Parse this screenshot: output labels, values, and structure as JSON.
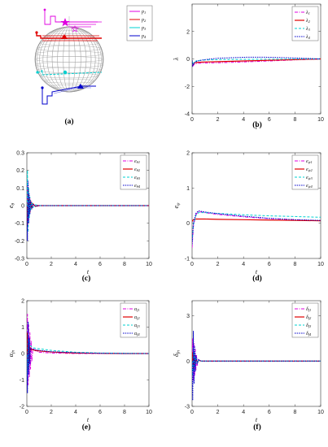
{
  "captions": [
    "(a)",
    "(b)",
    "(c)",
    "(d)",
    "(e)",
    "(f)"
  ],
  "colors": {
    "magenta": "#e000e0",
    "red": "#e00000",
    "cyan": "#00d0d0",
    "blue": "#0000cc"
  },
  "panel_a_legend": [
    "p1",
    "p2",
    "p3",
    "p4"
  ],
  "chart_data": [
    {
      "id": "b",
      "type": "line",
      "xlabel": "t",
      "ylabel": "λ",
      "xlim": [
        0,
        10
      ],
      "ylim": [
        -4,
        4
      ],
      "xticks": [
        0,
        2,
        4,
        6,
        8,
        10
      ],
      "yticks": [
        -4,
        -2,
        0,
        2
      ],
      "legend": [
        "λ1",
        "λ2",
        "λ3",
        "λ4"
      ],
      "series": [
        {
          "name": "λ1",
          "x": [
            0,
            0.05,
            0.15,
            0.4,
            1,
            2,
            4,
            6,
            8,
            10
          ],
          "y": [
            -0.1,
            -0.55,
            -0.4,
            -0.32,
            -0.3,
            -0.28,
            -0.22,
            -0.15,
            -0.07,
            0
          ]
        },
        {
          "name": "λ2",
          "x": [
            0,
            0.05,
            0.15,
            0.4,
            1,
            2,
            4,
            6,
            8,
            10
          ],
          "y": [
            -0.1,
            -0.45,
            -0.3,
            -0.25,
            -0.22,
            -0.2,
            -0.15,
            -0.1,
            -0.05,
            0
          ]
        },
        {
          "name": "λ3",
          "x": [
            0,
            0.05,
            0.15,
            0.4,
            1,
            2,
            4,
            6,
            8,
            10
          ],
          "y": [
            -0.1,
            -0.4,
            -0.22,
            -0.12,
            -0.08,
            -0.05,
            -0.03,
            -0.02,
            -0.01,
            0
          ]
        },
        {
          "name": "λ4",
          "x": [
            0,
            0.05,
            0.15,
            0.4,
            1,
            2,
            4,
            5,
            6,
            8,
            10
          ],
          "y": [
            -0.1,
            -0.5,
            -0.3,
            -0.15,
            -0.05,
            0.05,
            0.12,
            0.13,
            0.12,
            0.07,
            0
          ]
        }
      ]
    },
    {
      "id": "c",
      "type": "line",
      "xlabel": "t",
      "ylabel": "eθ",
      "xlim": [
        0,
        10
      ],
      "ylim": [
        -0.3,
        0.3
      ],
      "xticks": [
        0,
        2,
        4,
        6,
        8,
        10
      ],
      "yticks": [
        -0.3,
        -0.2,
        -0.1,
        0,
        0.1,
        0.2,
        0.3
      ],
      "legend": [
        "eθ1",
        "eθ2",
        "eθ3",
        "eθ4"
      ],
      "series": [
        {
          "name": "eθ1",
          "x": [
            0,
            0.05,
            0.1,
            0.15,
            0.2,
            0.25,
            0.3,
            0.4,
            0.5,
            0.7,
            1,
            10
          ],
          "y": [
            0,
            0.15,
            -0.1,
            0.08,
            -0.06,
            0.04,
            -0.03,
            0.02,
            -0.01,
            0.005,
            0,
            0
          ]
        },
        {
          "name": "eθ2",
          "x": [
            0,
            0.05,
            0.1,
            0.15,
            0.2,
            0.25,
            0.3,
            0.4,
            0.5,
            0.7,
            1,
            10
          ],
          "y": [
            0,
            -0.12,
            0.1,
            -0.07,
            0.05,
            -0.04,
            0.03,
            -0.015,
            0.01,
            -0.004,
            0,
            0
          ]
        },
        {
          "name": "eθ3",
          "x": [
            0,
            0.05,
            0.1,
            0.15,
            0.2,
            0.25,
            0.3,
            0.4,
            0.5,
            0.7,
            1,
            10
          ],
          "y": [
            0,
            0.2,
            -0.15,
            0.1,
            -0.07,
            0.05,
            -0.03,
            0.02,
            -0.01,
            0.005,
            0,
            0
          ]
        },
        {
          "name": "eθ4",
          "x": [
            0,
            0.05,
            0.1,
            0.15,
            0.2,
            0.25,
            0.3,
            0.4,
            0.5,
            0.7,
            1,
            10
          ],
          "y": [
            0,
            -0.2,
            0.14,
            -0.1,
            0.07,
            -0.05,
            0.03,
            -0.02,
            0.01,
            -0.005,
            0,
            0
          ]
        }
      ]
    },
    {
      "id": "d",
      "type": "line",
      "xlabel": "t",
      "ylabel": "eψ",
      "xlim": [
        0,
        10
      ],
      "ylim": [
        -1,
        2
      ],
      "xticks": [
        0,
        2,
        4,
        6,
        8,
        10
      ],
      "yticks": [
        -1,
        0,
        1,
        2
      ],
      "legend": [
        "eψ1",
        "eψ2",
        "eψ3",
        "eψ4"
      ],
      "series": [
        {
          "name": "eψ1",
          "x": [
            0,
            0.1,
            0.3,
            0.5,
            1,
            2,
            4,
            6,
            8,
            10
          ],
          "y": [
            -0.7,
            -0.1,
            0.25,
            0.33,
            0.3,
            0.25,
            0.18,
            0.13,
            0.1,
            0.07
          ]
        },
        {
          "name": "eψ2",
          "x": [
            0,
            0.1,
            0.3,
            0.5,
            1,
            2,
            4,
            6,
            8,
            10
          ],
          "y": [
            0.05,
            0.1,
            0.12,
            0.12,
            0.12,
            0.11,
            0.1,
            0.09,
            0.08,
            0.07
          ]
        },
        {
          "name": "eψ3",
          "x": [
            0,
            0.1,
            0.3,
            0.5,
            1,
            2,
            4,
            6,
            8,
            10
          ],
          "y": [
            -0.5,
            -0.05,
            0.22,
            0.3,
            0.3,
            0.28,
            0.24,
            0.21,
            0.19,
            0.17
          ]
        },
        {
          "name": "eψ4",
          "x": [
            0,
            0.1,
            0.3,
            0.5,
            1,
            2,
            4,
            6,
            8,
            10
          ],
          "y": [
            -0.6,
            0,
            0.28,
            0.35,
            0.32,
            0.27,
            0.2,
            0.14,
            0.1,
            0.08
          ]
        }
      ]
    },
    {
      "id": "e",
      "type": "line",
      "xlabel": "t",
      "ylabel": "αfn",
      "xlim": [
        0,
        10
      ],
      "ylim": [
        -2,
        2
      ],
      "xticks": [
        0,
        2,
        4,
        6,
        8,
        10
      ],
      "yticks": [
        -2,
        -1,
        0,
        1,
        2
      ],
      "legend": [
        "αf1",
        "αf2",
        "αf3",
        "αf4"
      ],
      "series": [
        {
          "name": "αf1",
          "x": [
            0,
            0.05,
            0.1,
            0.15,
            0.2,
            0.25,
            0.3,
            0.35,
            0.4,
            0.5,
            0.7,
            1,
            2,
            4,
            6,
            8,
            10
          ],
          "y": [
            0,
            1.5,
            -1.2,
            1.1,
            -0.9,
            0.8,
            -0.6,
            0.5,
            -0.3,
            0.2,
            0.1,
            0.05,
            0.02,
            0,
            0,
            0,
            0
          ]
        },
        {
          "name": "αf2",
          "x": [
            0,
            0.05,
            0.1,
            0.15,
            0.2,
            0.25,
            0.3,
            0.4,
            0.5,
            0.7,
            1,
            2,
            4,
            6,
            8,
            10
          ],
          "y": [
            0,
            0.8,
            -0.6,
            0.4,
            -0.3,
            0.25,
            0.15,
            0.15,
            0.14,
            0.12,
            0.1,
            0.06,
            0.02,
            0.01,
            0,
            0
          ]
        },
        {
          "name": "αf3",
          "x": [
            0,
            0.05,
            0.1,
            0.15,
            0.2,
            0.3,
            0.4,
            0.5,
            0.7,
            1,
            2,
            4,
            6,
            8,
            10
          ],
          "y": [
            0,
            -1,
            0.9,
            -0.6,
            0.5,
            0.3,
            0.25,
            0.22,
            0.2,
            0.18,
            0.12,
            0.05,
            0.02,
            0.01,
            0
          ]
        },
        {
          "name": "αf4",
          "x": [
            0,
            0.05,
            0.1,
            0.15,
            0.2,
            0.25,
            0.3,
            0.4,
            0.5,
            0.7,
            1,
            2,
            4,
            6,
            8,
            10
          ],
          "y": [
            0,
            -1.5,
            1.2,
            -0.8,
            0.6,
            -0.4,
            0.2,
            0.18,
            0.16,
            0.14,
            0.12,
            0.07,
            0.03,
            0.01,
            0,
            0
          ]
        }
      ]
    },
    {
      "id": "f",
      "type": "line",
      "xlabel": "t",
      "ylabel": "δfn",
      "xlim": [
        0,
        10
      ],
      "ylim": [
        -3,
        4
      ],
      "xticks": [
        0,
        2,
        4,
        6,
        8,
        10
      ],
      "yticks": [
        -3,
        0,
        3
      ],
      "legend": [
        "δf1",
        "δf2",
        "δf3",
        "δf4"
      ],
      "series": [
        {
          "name": "δf1",
          "x": [
            0,
            0.05,
            0.1,
            0.15,
            0.2,
            0.25,
            0.3,
            0.35,
            0.4,
            0.5,
            0.7,
            1,
            10
          ],
          "y": [
            0,
            1.5,
            -1.3,
            1.2,
            -1,
            0.8,
            -0.6,
            0.4,
            -0.3,
            0.1,
            0,
            0,
            0
          ]
        },
        {
          "name": "δf2",
          "x": [
            0,
            0.05,
            0.1,
            0.15,
            0.2,
            0.3,
            0.4,
            0.5,
            0.7,
            1,
            10
          ],
          "y": [
            0,
            0.6,
            -0.5,
            0.4,
            -0.3,
            0.2,
            -0.1,
            0.05,
            0,
            0,
            0
          ]
        },
        {
          "name": "δf3",
          "x": [
            0,
            0.05,
            0.1,
            0.15,
            0.2,
            0.25,
            0.3,
            0.4,
            0.5,
            0.7,
            1,
            10
          ],
          "y": [
            0,
            -1,
            0.9,
            -0.7,
            0.6,
            -0.4,
            0.3,
            -0.15,
            0.05,
            0,
            0,
            0
          ]
        },
        {
          "name": "δf4",
          "x": [
            0,
            0.05,
            0.1,
            0.15,
            0.2,
            0.25,
            0.3,
            0.4,
            0.5,
            0.7,
            1,
            10
          ],
          "y": [
            0,
            -2.6,
            2,
            -1.5,
            1,
            -0.7,
            0.4,
            -0.2,
            0.1,
            0,
            0,
            0
          ]
        }
      ]
    }
  ]
}
